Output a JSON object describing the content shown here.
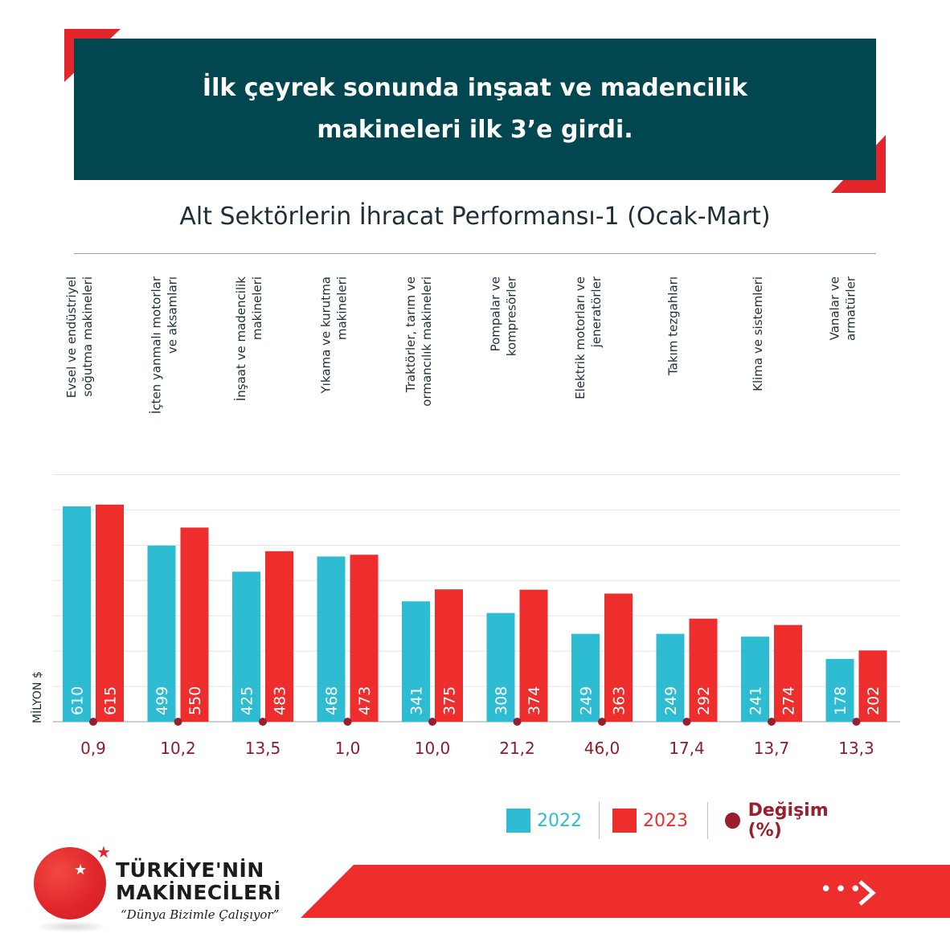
{
  "header": {
    "headline_line1": "İlk çeyrek sonunda inşaat ve madencilik",
    "headline_line2": "makineleri ilk 3’e girdi."
  },
  "colors": {
    "header_bg": "#02464f",
    "series_2022": "#2ebcd3",
    "series_2023": "#ee2d2d",
    "change_dot": "#9b1e2e",
    "accent_red": "#e2262b"
  },
  "chart_data": {
    "type": "bar",
    "title": "Alt Sektörlerin İhracat Performansı-1 (Ocak-Mart)",
    "ylabel": "MİLYON $",
    "ylim": [
      0,
      700
    ],
    "grid": true,
    "categories": [
      [
        "Evsel ve endüstriyel",
        "soğutma makineleri"
      ],
      [
        "İçten yanmalı motorlar",
        "ve aksamları"
      ],
      [
        "İnşaat ve madencilik",
        "makineleri"
      ],
      [
        "Yıkama ve kurutma",
        "makineleri"
      ],
      [
        "Traktörler, tarım ve",
        "ormancılık makineleri"
      ],
      [
        "Pompalar ve",
        "kompresörler"
      ],
      [
        "Elektrik motorları ve",
        "jeneratörler"
      ],
      [
        "Takım tezgahları"
      ],
      [
        "Klima ve sistemleri"
      ],
      [
        "Vanalar ve",
        "armatürler"
      ]
    ],
    "series": [
      {
        "name": "2022",
        "values": [
          610,
          499,
          425,
          468,
          341,
          308,
          249,
          249,
          241,
          178
        ]
      },
      {
        "name": "2023",
        "values": [
          615,
          550,
          483,
          473,
          375,
          374,
          363,
          292,
          274,
          202
        ]
      }
    ],
    "change": {
      "name": "Değişim (%)",
      "values": [
        "0,9",
        "10,2",
        "13,5",
        "1,0",
        "10,0",
        "21,2",
        "46,0",
        "17,4",
        "13,7",
        "13,3"
      ]
    },
    "legend": {
      "placement": "bottom-right",
      "items": [
        "2022",
        "2023",
        "Değişim (%)"
      ]
    }
  },
  "brand": {
    "line1": "TÜRKİYE'NİN",
    "line2": "MAKİNECİLERİ",
    "slogan": "“Dünya Bizimle Çalışıyor”"
  }
}
